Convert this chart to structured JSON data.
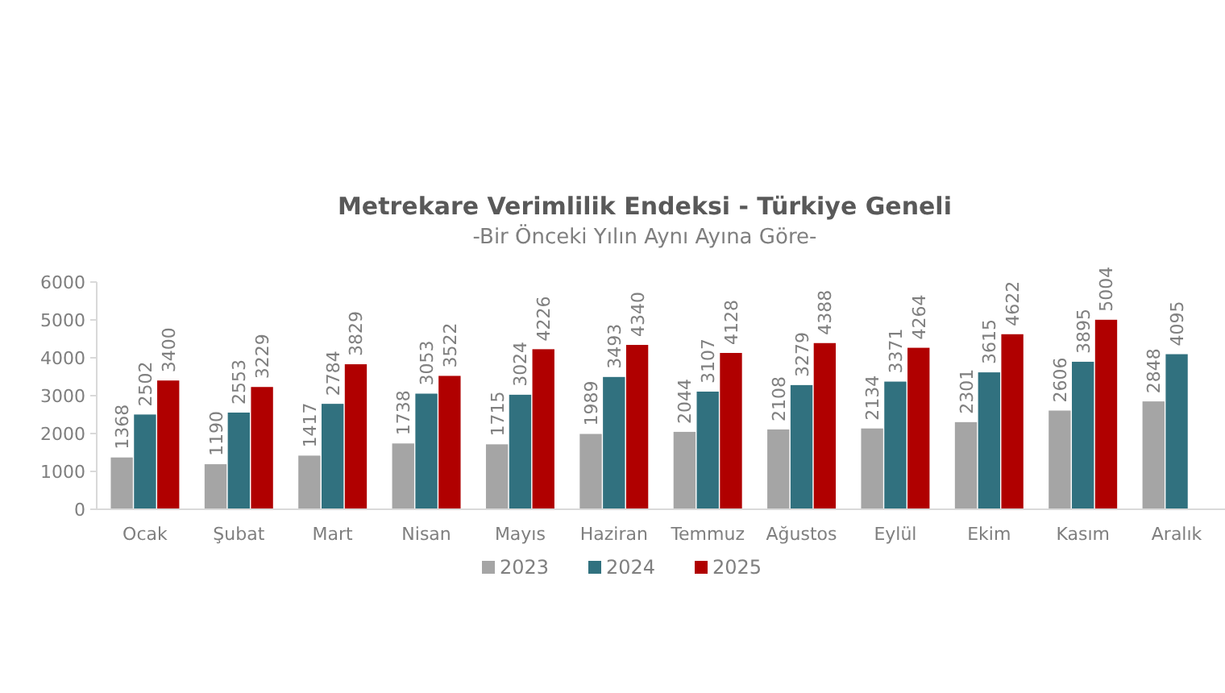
{
  "chart_data": {
    "type": "bar",
    "title": "Metrekare Verimlilik Endeksi - Türkiye Geneli",
    "subtitle": "-Bir Önceki Yılın Aynı Ayına Göre-",
    "categories": [
      "Ocak",
      "Şubat",
      "Mart",
      "Nisan",
      "Mayıs",
      "Haziran",
      "Temmuz",
      "Ağustos",
      "Eylül",
      "Ekim",
      "Kasım",
      "Aralık"
    ],
    "series": [
      {
        "name": "2023",
        "color": "#a5a5a5",
        "values": [
          1368,
          1190,
          1417,
          1738,
          1715,
          1989,
          2044,
          2108,
          2134,
          2301,
          2606,
          2848
        ]
      },
      {
        "name": "2024",
        "color": "#31717f",
        "values": [
          2502,
          2553,
          2784,
          3053,
          3024,
          3493,
          3107,
          3279,
          3371,
          3615,
          3895,
          4095
        ]
      },
      {
        "name": "2025",
        "color": "#b00000",
        "values": [
          3400,
          3229,
          3829,
          3522,
          4226,
          4340,
          4128,
          4388,
          4264,
          4622,
          5004,
          null
        ]
      }
    ],
    "ylim": [
      0,
      6000
    ],
    "yticks": [
      0,
      1000,
      2000,
      3000,
      4000,
      5000,
      6000
    ],
    "grid": false,
    "legend": "bottom",
    "data_labels": true
  }
}
